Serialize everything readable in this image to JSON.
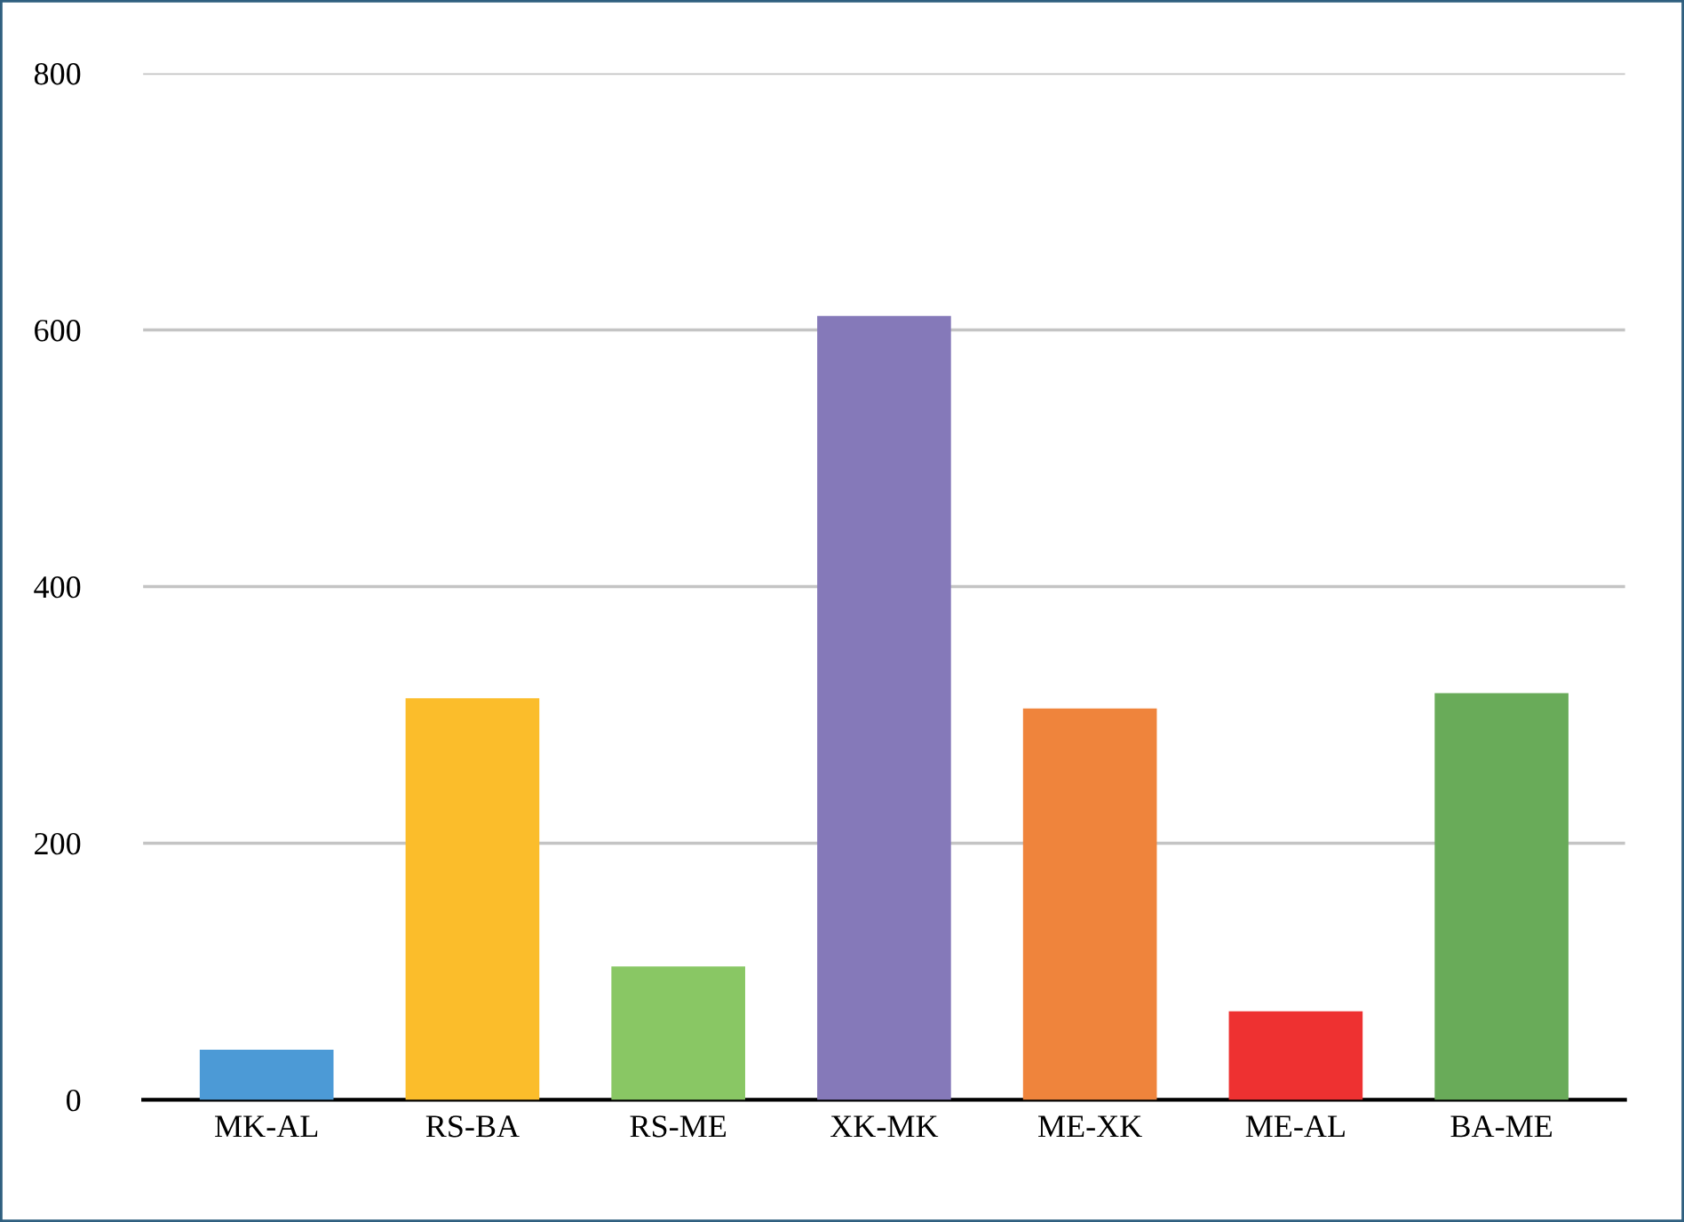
{
  "chart_data": {
    "type": "bar",
    "categories": [
      "MK-AL",
      "RS-BA",
      "RS-ME",
      "XK-MK",
      "ME-XK",
      "ME-AL",
      "BA-ME"
    ],
    "values": [
      39,
      313,
      104,
      611,
      305,
      69,
      317
    ],
    "colors": [
      "#4c9ad6",
      "#fbbd2b",
      "#89c764",
      "#8579b9",
      "#ef843c",
      "#ee3131",
      "#69ab59"
    ],
    "ylim": [
      0,
      800
    ],
    "yticks": [
      0,
      200,
      400,
      600,
      800
    ],
    "grid": "y",
    "legend": false
  }
}
